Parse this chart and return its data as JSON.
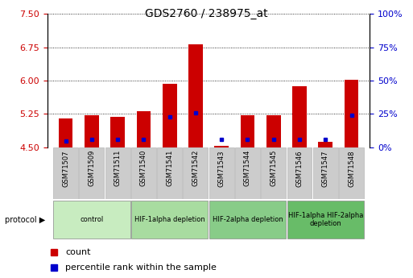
{
  "title": "GDS2760 / 238975_at",
  "samples": [
    "GSM71507",
    "GSM71509",
    "GSM71511",
    "GSM71540",
    "GSM71541",
    "GSM71542",
    "GSM71543",
    "GSM71544",
    "GSM71545",
    "GSM71546",
    "GSM71547",
    "GSM71548"
  ],
  "red_values": [
    5.15,
    5.22,
    5.18,
    5.32,
    5.93,
    6.82,
    4.53,
    5.23,
    5.23,
    5.87,
    4.62,
    6.02
  ],
  "blue_values": [
    4.65,
    4.68,
    4.68,
    4.67,
    5.18,
    5.28,
    4.67,
    4.67,
    4.67,
    4.67,
    4.67,
    5.22
  ],
  "ymin": 4.5,
  "ymax": 7.5,
  "yticks": [
    4.5,
    5.25,
    6.0,
    6.75,
    7.5
  ],
  "y2ticks": [
    0,
    25,
    50,
    75,
    100
  ],
  "y2labels": [
    "0%",
    "25%",
    "50%",
    "75%",
    "100%"
  ],
  "groups": [
    {
      "label": "control",
      "indices": [
        0,
        1,
        2
      ],
      "color": "#c8ecc0"
    },
    {
      "label": "HIF-1alpha depletion",
      "indices": [
        3,
        4,
        5
      ],
      "color": "#a8dca0"
    },
    {
      "label": "HIF-2alpha depletion",
      "indices": [
        6,
        7,
        8
      ],
      "color": "#88cc88"
    },
    {
      "label": "HIF-1alpha HIF-2alpha\ndepletion",
      "indices": [
        9,
        10,
        11
      ],
      "color": "#68bc68"
    }
  ],
  "bar_color": "#cc0000",
  "blue_color": "#0000cc",
  "bar_width": 0.55,
  "tick_color_left": "#cc0000",
  "tick_color_right": "#0000cc",
  "sample_box_color": "#cccccc",
  "sample_box_edge": "#aaaaaa"
}
